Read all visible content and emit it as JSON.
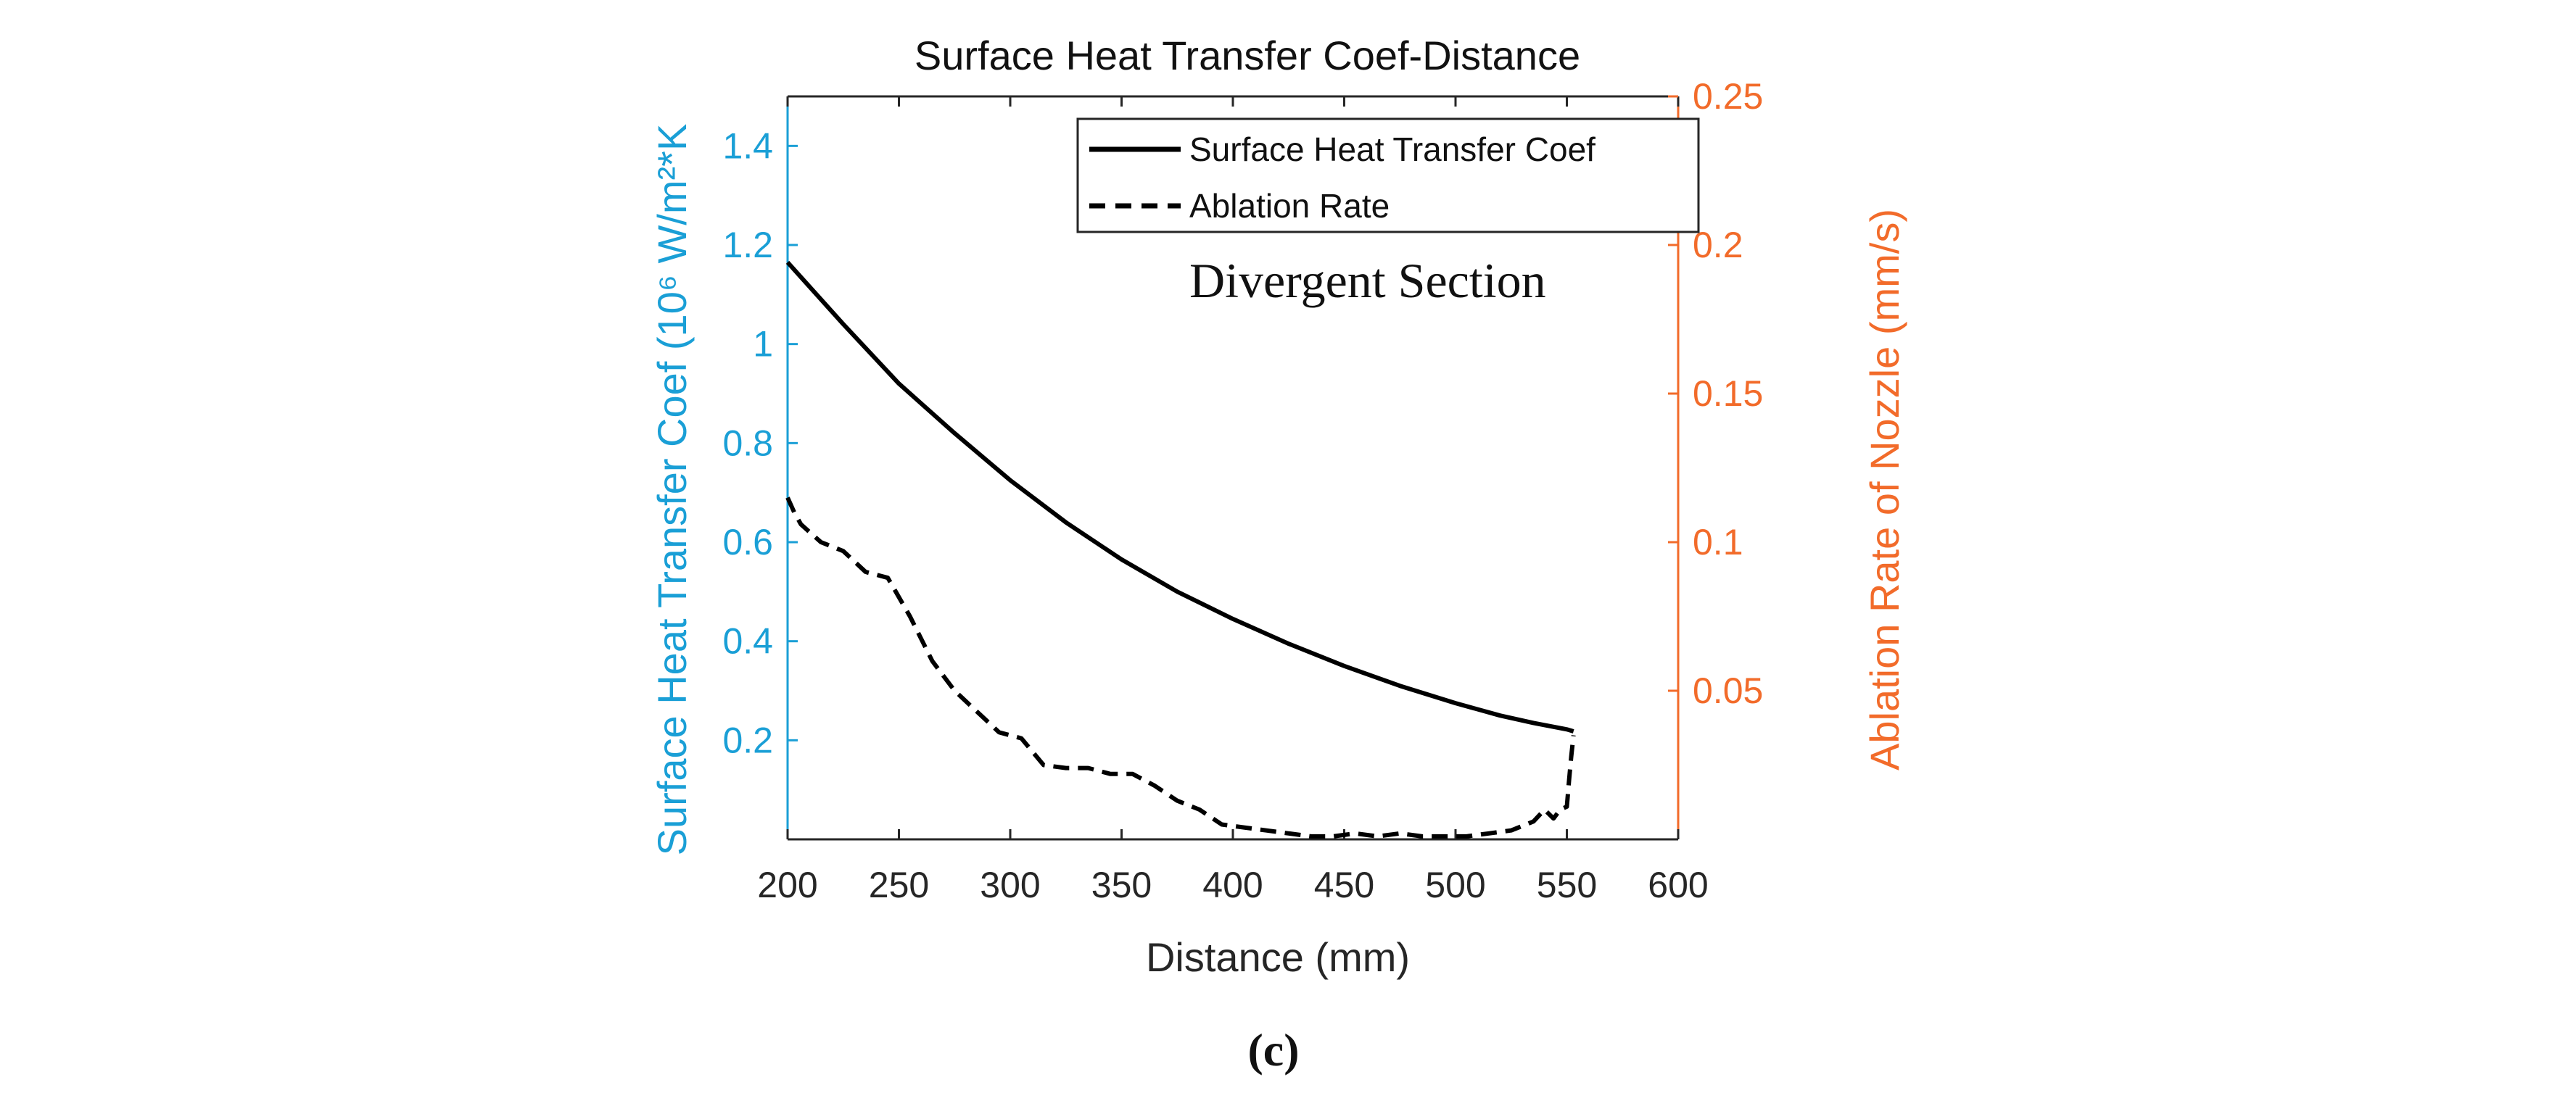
{
  "chart_data": {
    "type": "line",
    "title": "Surface Heat Transfer Coef-Distance",
    "xlabel": "Distance (mm)",
    "ylabel_left": "Surface Heat Transfer Coef (10⁶ W/m²*K",
    "ylabel_right": "Ablation Rate of Nozzle (mm/s)",
    "xlim": [
      200,
      600
    ],
    "ylim_left": [
      0,
      1.5
    ],
    "ylim_right": [
      0,
      0.25
    ],
    "x_ticks": [
      "200",
      "250",
      "300",
      "350",
      "400",
      "450",
      "500",
      "550",
      "600"
    ],
    "y_left_ticks": [
      "0.2",
      "0.4",
      "0.6",
      "0.8",
      "1",
      "1.2",
      "1.4"
    ],
    "y_right_ticks": [
      "0.05",
      "0.1",
      "0.15",
      "0.2",
      "0.25"
    ],
    "annotation": "Divergent Section",
    "caption": "(c)",
    "series": [
      {
        "name": "Surface Heat Transfer Coef",
        "axis": "left",
        "style": "solid",
        "x": [
          200,
          225,
          250,
          275,
          300,
          325,
          350,
          375,
          400,
          425,
          450,
          475,
          500,
          520,
          535,
          550,
          553
        ],
        "y": [
          1.165,
          1.04,
          0.92,
          0.82,
          0.725,
          0.64,
          0.565,
          0.5,
          0.445,
          0.395,
          0.35,
          0.31,
          0.275,
          0.25,
          0.235,
          0.222,
          0.218
        ]
      },
      {
        "name": "Ablation Rate",
        "axis": "right",
        "style": "dashed",
        "x": [
          200,
          203,
          206,
          215,
          225,
          235,
          245,
          255,
          265,
          275,
          285,
          295,
          305,
          315,
          325,
          335,
          345,
          355,
          365,
          375,
          385,
          395,
          405,
          415,
          425,
          435,
          445,
          455,
          465,
          475,
          485,
          495,
          505,
          515,
          525,
          535,
          540,
          544,
          547,
          550,
          551,
          552,
          553
        ],
        "y": [
          0.115,
          0.11,
          0.106,
          0.1,
          0.097,
          0.09,
          0.088,
          0.075,
          0.06,
          0.05,
          0.043,
          0.036,
          0.034,
          0.025,
          0.024,
          0.024,
          0.022,
          0.022,
          0.018,
          0.013,
          0.01,
          0.005,
          0.004,
          0.003,
          0.002,
          0.001,
          0.001,
          0.002,
          0.001,
          0.002,
          0.001,
          0.001,
          0.001,
          0.002,
          0.003,
          0.006,
          0.01,
          0.007,
          0.01,
          0.011,
          0.02,
          0.028,
          0.035
        ]
      }
    ],
    "legend": {
      "placement": "top-right"
    },
    "colors": {
      "left_axis": "#1a9fd6",
      "right_axis": "#f26b2a",
      "frame": "#262626",
      "line": "#000000"
    }
  }
}
